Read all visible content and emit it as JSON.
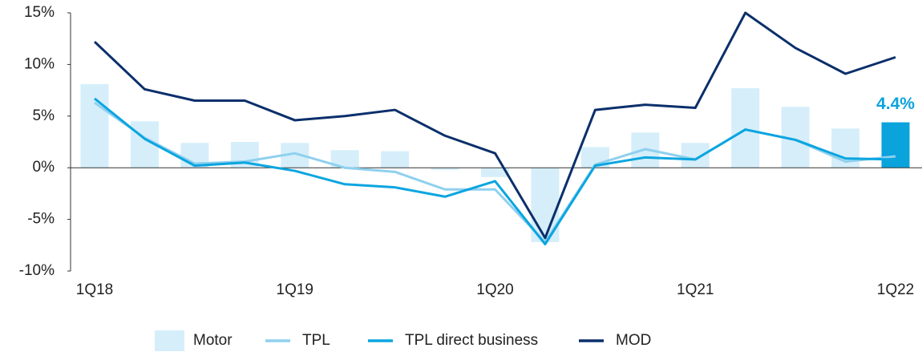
{
  "chart_data": {
    "type": "bar_line",
    "categories": [
      "1Q18",
      null,
      null,
      null,
      "1Q19",
      null,
      null,
      null,
      "1Q20",
      null,
      null,
      null,
      "1Q21",
      null,
      null,
      null,
      "1Q22"
    ],
    "series": [
      {
        "name": "Motor",
        "type": "bar",
        "color": "#d5eefa",
        "colors": [
          "#d5eefa",
          "#d5eefa",
          "#d5eefa",
          "#d5eefa",
          "#d5eefa",
          "#d5eefa",
          "#d5eefa",
          "#d5eefa",
          "#d5eefa",
          "#d5eefa",
          "#d5eefa",
          "#d5eefa",
          "#d5eefa",
          "#d5eefa",
          "#d5eefa",
          "#d5eefa",
          "#0aa3dc"
        ],
        "values": [
          8.1,
          4.5,
          2.4,
          2.5,
          2.4,
          1.7,
          1.6,
          -0.2,
          -0.9,
          -7.2,
          2.0,
          3.4,
          2.4,
          7.7,
          5.9,
          3.8,
          4.4
        ],
        "value_labels": [
          null,
          null,
          null,
          null,
          null,
          null,
          null,
          null,
          null,
          null,
          null,
          null,
          null,
          null,
          null,
          null,
          "4.4%"
        ]
      },
      {
        "name": "TPL",
        "type": "line",
        "color": "#8fd0ee",
        "values": [
          6.3,
          2.9,
          0.4,
          0.6,
          1.4,
          0.0,
          -0.4,
          -2.1,
          -2.1,
          -7.2,
          0.3,
          1.8,
          0.8,
          3.7,
          2.7,
          0.6,
          1.1
        ]
      },
      {
        "name": "TPL direct business",
        "type": "line",
        "color": "#0ba5e0",
        "values": [
          6.7,
          2.8,
          0.2,
          0.5,
          -0.3,
          -1.6,
          -1.9,
          -2.8,
          -1.3,
          -7.4,
          0.2,
          1.0,
          0.8,
          3.7,
          2.7,
          0.9,
          0.8
        ]
      },
      {
        "name": "MOD",
        "type": "line",
        "color": "#0b2f6b",
        "values": [
          12.2,
          7.6,
          6.5,
          6.5,
          4.6,
          5.0,
          5.6,
          3.1,
          1.4,
          -6.8,
          5.6,
          6.1,
          5.8,
          15.0,
          11.6,
          9.1,
          10.7
        ]
      }
    ],
    "ylim": [
      -10,
      15
    ],
    "yticks": [
      {
        "value": -10,
        "label": "-10%"
      },
      {
        "value": -5,
        "label": "-5%"
      },
      {
        "value": 0,
        "label": "0%"
      },
      {
        "value": 5,
        "label": "5%"
      },
      {
        "value": 10,
        "label": "10%"
      },
      {
        "value": 15,
        "label": "15%"
      }
    ],
    "grid": false,
    "legend": "bottom"
  }
}
